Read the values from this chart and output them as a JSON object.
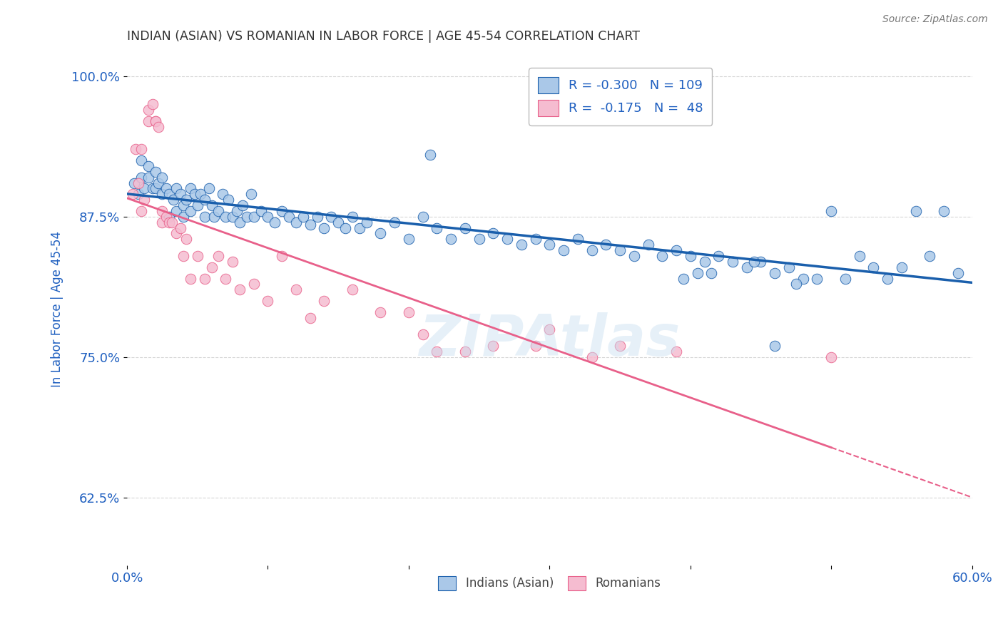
{
  "title": "INDIAN (ASIAN) VS ROMANIAN IN LABOR FORCE | AGE 45-54 CORRELATION CHART",
  "source": "Source: ZipAtlas.com",
  "ylabel": "In Labor Force | Age 45-54",
  "xlim": [
    0.0,
    0.6
  ],
  "ylim": [
    0.565,
    1.02
  ],
  "yticks": [
    0.625,
    0.75,
    0.875,
    1.0
  ],
  "ytick_labels": [
    "62.5%",
    "75.0%",
    "87.5%",
    "100.0%"
  ],
  "xticks": [
    0.0,
    0.1,
    0.2,
    0.3,
    0.4,
    0.5,
    0.6
  ],
  "xtick_labels": [
    "0.0%",
    "",
    "",
    "",
    "",
    "",
    "60.0%"
  ],
  "indian_color": "#aac8e8",
  "romanian_color": "#f5bcd0",
  "indian_trend_color": "#1a5fac",
  "romanian_trend_color": "#e8608a",
  "legend_R_indian": "-0.300",
  "legend_N_indian": "109",
  "legend_R_romanian": "-0.175",
  "legend_N_romanian": "48",
  "background_color": "#ffffff",
  "grid_color": "#cccccc",
  "title_color": "#333333",
  "axis_label_color": "#2060c0",
  "indian_x": [
    0.005,
    0.008,
    0.01,
    0.01,
    0.012,
    0.015,
    0.015,
    0.018,
    0.02,
    0.02,
    0.022,
    0.025,
    0.025,
    0.028,
    0.03,
    0.03,
    0.033,
    0.035,
    0.035,
    0.038,
    0.04,
    0.04,
    0.042,
    0.045,
    0.045,
    0.048,
    0.05,
    0.052,
    0.055,
    0.055,
    0.058,
    0.06,
    0.062,
    0.065,
    0.068,
    0.07,
    0.072,
    0.075,
    0.078,
    0.08,
    0.082,
    0.085,
    0.088,
    0.09,
    0.095,
    0.1,
    0.105,
    0.11,
    0.115,
    0.12,
    0.125,
    0.13,
    0.135,
    0.14,
    0.145,
    0.15,
    0.155,
    0.16,
    0.165,
    0.17,
    0.18,
    0.19,
    0.2,
    0.21,
    0.215,
    0.22,
    0.23,
    0.24,
    0.25,
    0.26,
    0.27,
    0.28,
    0.29,
    0.3,
    0.31,
    0.32,
    0.33,
    0.34,
    0.35,
    0.36,
    0.37,
    0.38,
    0.39,
    0.4,
    0.41,
    0.42,
    0.43,
    0.44,
    0.45,
    0.46,
    0.47,
    0.48,
    0.5,
    0.52,
    0.54,
    0.55,
    0.56,
    0.57,
    0.58,
    0.59,
    0.53,
    0.51,
    0.49,
    0.475,
    0.46,
    0.445,
    0.415,
    0.405,
    0.395
  ],
  "indian_y": [
    0.905,
    0.895,
    0.925,
    0.91,
    0.9,
    0.92,
    0.91,
    0.9,
    0.915,
    0.9,
    0.905,
    0.91,
    0.895,
    0.9,
    0.895,
    0.875,
    0.89,
    0.88,
    0.9,
    0.895,
    0.885,
    0.875,
    0.89,
    0.9,
    0.88,
    0.895,
    0.885,
    0.895,
    0.89,
    0.875,
    0.9,
    0.885,
    0.875,
    0.88,
    0.895,
    0.875,
    0.89,
    0.875,
    0.88,
    0.87,
    0.885,
    0.875,
    0.895,
    0.875,
    0.88,
    0.875,
    0.87,
    0.88,
    0.875,
    0.87,
    0.875,
    0.868,
    0.875,
    0.865,
    0.875,
    0.87,
    0.865,
    0.875,
    0.865,
    0.87,
    0.86,
    0.87,
    0.855,
    0.875,
    0.93,
    0.865,
    0.855,
    0.865,
    0.855,
    0.86,
    0.855,
    0.85,
    0.855,
    0.85,
    0.845,
    0.855,
    0.845,
    0.85,
    0.845,
    0.84,
    0.85,
    0.84,
    0.845,
    0.84,
    0.835,
    0.84,
    0.835,
    0.83,
    0.835,
    0.825,
    0.83,
    0.82,
    0.88,
    0.84,
    0.82,
    0.83,
    0.88,
    0.84,
    0.88,
    0.825,
    0.83,
    0.82,
    0.82,
    0.815,
    0.76,
    0.835,
    0.825,
    0.825,
    0.82
  ],
  "romanian_x": [
    0.004,
    0.006,
    0.008,
    0.01,
    0.01,
    0.012,
    0.015,
    0.015,
    0.018,
    0.02,
    0.02,
    0.022,
    0.025,
    0.025,
    0.028,
    0.03,
    0.032,
    0.035,
    0.038,
    0.04,
    0.042,
    0.045,
    0.05,
    0.055,
    0.06,
    0.065,
    0.07,
    0.075,
    0.08,
    0.09,
    0.1,
    0.11,
    0.12,
    0.13,
    0.14,
    0.16,
    0.18,
    0.2,
    0.21,
    0.22,
    0.24,
    0.26,
    0.29,
    0.3,
    0.33,
    0.35,
    0.39,
    0.5
  ],
  "romanian_y": [
    0.895,
    0.935,
    0.905,
    0.935,
    0.88,
    0.89,
    0.97,
    0.96,
    0.975,
    0.96,
    0.96,
    0.955,
    0.88,
    0.87,
    0.875,
    0.87,
    0.87,
    0.86,
    0.865,
    0.84,
    0.855,
    0.82,
    0.84,
    0.82,
    0.83,
    0.84,
    0.82,
    0.835,
    0.81,
    0.815,
    0.8,
    0.84,
    0.81,
    0.785,
    0.8,
    0.81,
    0.79,
    0.79,
    0.77,
    0.755,
    0.755,
    0.76,
    0.76,
    0.775,
    0.75,
    0.76,
    0.755,
    0.75
  ]
}
